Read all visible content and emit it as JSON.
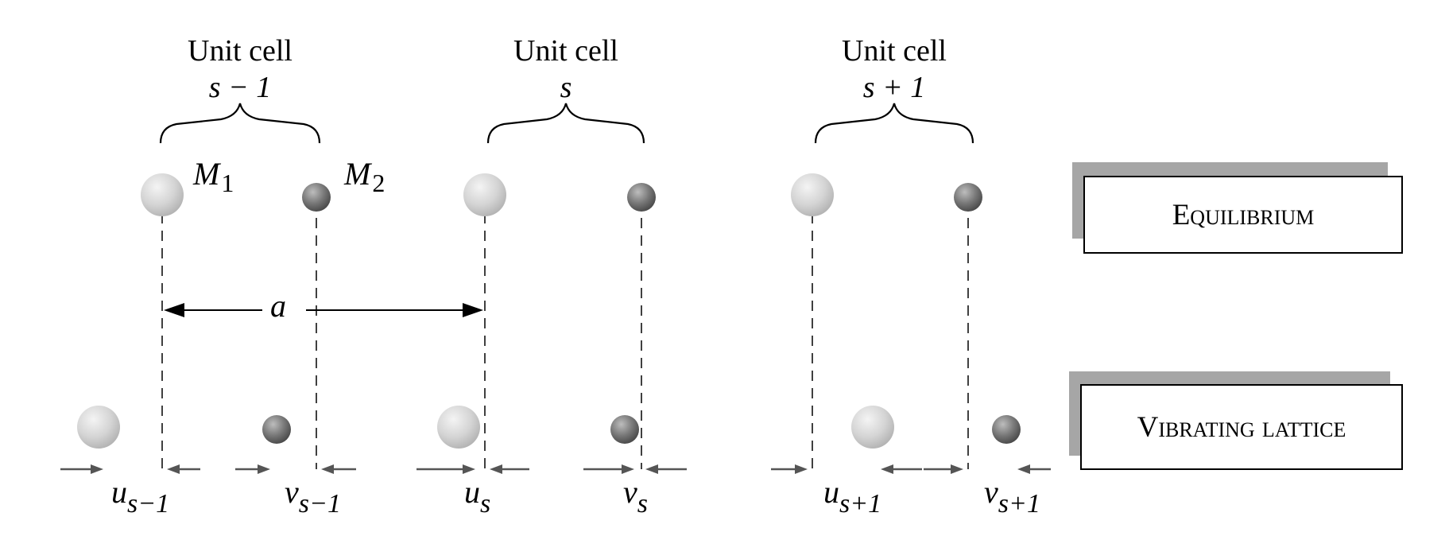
{
  "unit_cells": [
    {
      "title": "Unit cell",
      "index": "s − 1"
    },
    {
      "title": "Unit cell",
      "index": "s"
    },
    {
      "title": "Unit cell",
      "index": "s + 1"
    }
  ],
  "masses": {
    "m1_symbol": "M",
    "m1_sub": "1",
    "m2_symbol": "M",
    "m2_sub": "2"
  },
  "spacing_label": "a",
  "states": {
    "equilibrium": "Equilibrium",
    "vibrating": "Vibrating lattice"
  },
  "displacements": [
    {
      "symbol": "u",
      "sub": "s−1"
    },
    {
      "symbol": "v",
      "sub": "s−1"
    },
    {
      "symbol": "u",
      "sub": "s"
    },
    {
      "symbol": "v",
      "sub": "s"
    },
    {
      "symbol": "u",
      "sub": "s+1"
    },
    {
      "symbol": "v",
      "sub": "s+1"
    }
  ],
  "colors": {
    "light_atom_highlight": "#f4f4f4",
    "light_atom_base": "#c2c2c2",
    "dark_atom_highlight": "#bdbdbd",
    "dark_atom_base": "#555555",
    "panel_shadow": "#a6a6a6",
    "displacement_arrow": "#555555"
  }
}
